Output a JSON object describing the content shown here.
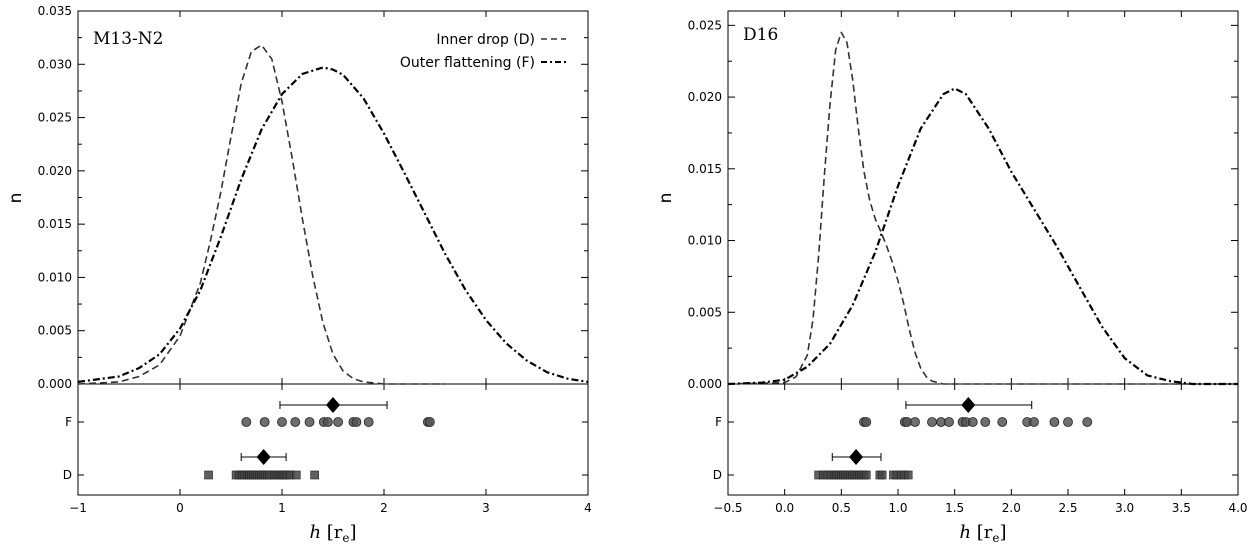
{
  "chart_data": [
    {
      "type": "line",
      "title": "M13-N2",
      "xlabel": "h [r_e]",
      "ylabel": "n",
      "xlim": [
        -1,
        4
      ],
      "ylim": [
        0,
        0.035
      ],
      "xticks": [
        -1,
        0,
        1,
        2,
        3,
        4
      ],
      "yticks": [
        0.0,
        0.005,
        0.01,
        0.015,
        0.02,
        0.025,
        0.03,
        0.035
      ],
      "xtick_labels": [
        "−1",
        "0",
        "1",
        "2",
        "3",
        "4"
      ],
      "ytick_labels": [
        "0.000",
        "0.005",
        "0.010",
        "0.015",
        "0.020",
        "0.025",
        "0.030",
        "0.035"
      ],
      "legend": {
        "position": "top-right",
        "entries": [
          {
            "label": "Inner drop (D)",
            "style": "dashed"
          },
          {
            "label": "Outer flattening (F)",
            "style": "dashdot"
          }
        ]
      },
      "series": [
        {
          "name": "Inner drop (D)",
          "style": "dashed",
          "x": [
            -1.0,
            -0.6,
            -0.4,
            -0.2,
            0.0,
            0.2,
            0.3,
            0.4,
            0.5,
            0.6,
            0.7,
            0.8,
            0.9,
            1.0,
            1.1,
            1.2,
            1.3,
            1.4,
            1.5,
            1.6,
            1.7,
            1.8,
            2.0,
            2.6
          ],
          "y": [
            0.0,
            0.0002,
            0.0007,
            0.0018,
            0.0045,
            0.0095,
            0.0135,
            0.018,
            0.0232,
            0.0282,
            0.0312,
            0.0318,
            0.0305,
            0.0265,
            0.0212,
            0.0155,
            0.0102,
            0.0058,
            0.0028,
            0.0012,
            0.0005,
            0.0002,
            0.0,
            0.0
          ]
        },
        {
          "name": "Outer flattening (F)",
          "style": "dashdot",
          "x": [
            -1.0,
            -0.6,
            -0.4,
            -0.2,
            0.0,
            0.2,
            0.4,
            0.6,
            0.8,
            1.0,
            1.2,
            1.4,
            1.5,
            1.6,
            1.8,
            2.0,
            2.2,
            2.4,
            2.6,
            2.8,
            3.0,
            3.2,
            3.4,
            3.6,
            3.8,
            4.0
          ],
          "y": [
            0.0002,
            0.0007,
            0.0015,
            0.0028,
            0.0052,
            0.0088,
            0.0138,
            0.0192,
            0.0239,
            0.0272,
            0.0291,
            0.0297,
            0.0295,
            0.029,
            0.0268,
            0.0235,
            0.0198,
            0.016,
            0.0122,
            0.0088,
            0.006,
            0.0038,
            0.0022,
            0.0011,
            0.0005,
            0.0002
          ]
        }
      ],
      "strip": {
        "categories": [
          "F",
          "D"
        ],
        "F": {
          "points": [
            0.65,
            0.83,
            1.0,
            1.13,
            1.27,
            1.41,
            1.45,
            1.55,
            1.7,
            1.73,
            1.85,
            2.43,
            2.45
          ],
          "mean": 1.5,
          "err_low": 0.98,
          "err_high": 2.03
        },
        "D": {
          "points": [
            0.28,
            0.55,
            0.58,
            0.61,
            0.63,
            0.66,
            0.68,
            0.7,
            0.72,
            0.74,
            0.76,
            0.78,
            0.8,
            0.82,
            0.84,
            0.86,
            0.88,
            0.93,
            0.95,
            0.97,
            0.99,
            1.01,
            1.03,
            1.05,
            1.08,
            1.14,
            1.32
          ],
          "mean": 0.82,
          "err_low": 0.6,
          "err_high": 1.04
        }
      }
    },
    {
      "type": "line",
      "title": "D16",
      "xlabel": "h [r_e]",
      "ylabel": "n",
      "xlim": [
        -0.5,
        4.0
      ],
      "ylim": [
        0,
        0.026
      ],
      "xticks": [
        -0.5,
        0.0,
        0.5,
        1.0,
        1.5,
        2.0,
        2.5,
        3.0,
        3.5,
        4.0
      ],
      "yticks": [
        0.0,
        0.005,
        0.01,
        0.015,
        0.02,
        0.025
      ],
      "xtick_labels": [
        "−0.5",
        "0.0",
        "0.5",
        "1.0",
        "1.5",
        "2.0",
        "2.5",
        "3.0",
        "3.5",
        "4.0"
      ],
      "ytick_labels": [
        "0.000",
        "0.005",
        "0.010",
        "0.015",
        "0.020",
        "0.025"
      ],
      "series": [
        {
          "name": "Inner drop (D)",
          "style": "dashed",
          "x": [
            -0.5,
            0.0,
            0.1,
            0.2,
            0.25,
            0.3,
            0.35,
            0.4,
            0.45,
            0.5,
            0.55,
            0.6,
            0.65,
            0.7,
            0.75,
            0.8,
            0.85,
            0.9,
            0.95,
            1.0,
            1.05,
            1.1,
            1.15,
            1.2,
            1.25,
            1.3,
            1.4,
            1.6,
            4.0
          ],
          "y": [
            0.0,
            0.0001,
            0.0005,
            0.002,
            0.0045,
            0.009,
            0.0145,
            0.0195,
            0.0233,
            0.0245,
            0.0238,
            0.0212,
            0.0178,
            0.0148,
            0.0128,
            0.0115,
            0.0106,
            0.0096,
            0.0085,
            0.0072,
            0.0056,
            0.0038,
            0.0022,
            0.0011,
            0.0005,
            0.0002,
            0.0,
            0.0,
            0.0
          ]
        },
        {
          "name": "Outer flattening (F)",
          "style": "dashdot",
          "x": [
            -0.5,
            -0.2,
            0.0,
            0.2,
            0.4,
            0.6,
            0.8,
            1.0,
            1.2,
            1.4,
            1.5,
            1.6,
            1.8,
            2.0,
            2.2,
            2.4,
            2.6,
            2.8,
            3.0,
            3.2,
            3.4,
            3.6,
            4.0
          ],
          "y": [
            0.0,
            0.0001,
            0.0003,
            0.0012,
            0.0028,
            0.0055,
            0.0092,
            0.0138,
            0.0178,
            0.0202,
            0.0206,
            0.0202,
            0.0178,
            0.0148,
            0.0122,
            0.0096,
            0.0068,
            0.004,
            0.0018,
            0.0006,
            0.0002,
            0.0,
            0.0
          ]
        }
      ],
      "strip": {
        "categories": [
          "F",
          "D"
        ],
        "F": {
          "points": [
            0.7,
            0.72,
            1.06,
            1.08,
            1.15,
            1.3,
            1.38,
            1.45,
            1.57,
            1.6,
            1.66,
            1.77,
            1.92,
            2.14,
            2.2,
            2.38,
            2.5,
            2.67
          ],
          "mean": 1.62,
          "err_low": 1.07,
          "err_high": 2.18
        },
        "D": {
          "points": [
            0.3,
            0.34,
            0.38,
            0.41,
            0.44,
            0.46,
            0.48,
            0.5,
            0.52,
            0.54,
            0.56,
            0.58,
            0.6,
            0.62,
            0.64,
            0.66,
            0.68,
            0.7,
            0.72,
            0.84,
            0.86,
            0.96,
            0.99,
            1.03,
            1.06,
            1.09
          ],
          "mean": 0.63,
          "err_low": 0.42,
          "err_high": 0.85
        }
      }
    }
  ]
}
